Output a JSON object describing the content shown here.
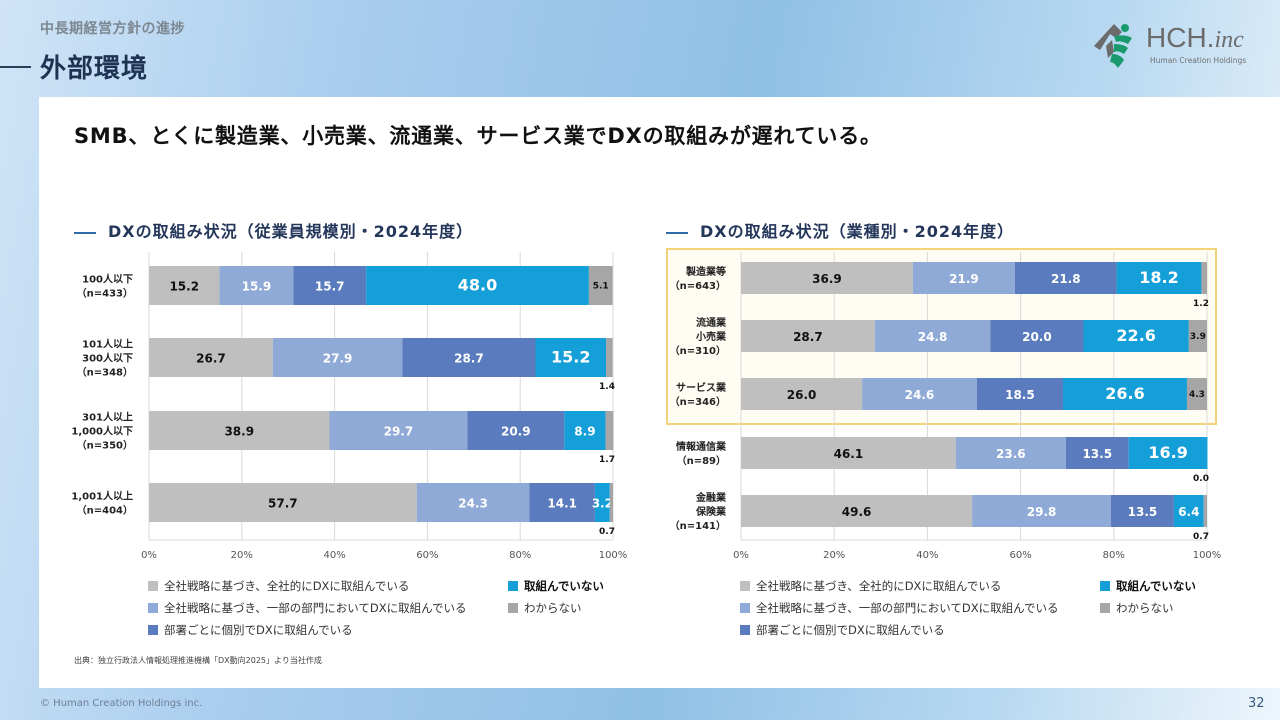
{
  "header": {
    "subtitle": "中長期経営方針の進捗",
    "title": "外部環境",
    "logo": {
      "main": "HCH.",
      "italic": "inc",
      "sub": "Human Creation Holdings"
    }
  },
  "headline": "SMB、とくに製造業、小売業、流通業、サービス業でDXの取組みが遅れている。",
  "legend": [
    {
      "label": "全社戦略に基づき、全社的にDXに取組んでいる",
      "color": "#bfbfbf",
      "bold": false
    },
    {
      "label": "全社戦略に基づき、一部の部門においてDXに取組んでいる",
      "color": "#8faad6",
      "bold": false
    },
    {
      "label": "部署ごとに個別でDXに取組んでいる",
      "color": "#5a7bbd",
      "bold": false
    },
    {
      "label": "取組んでいない",
      "color": "#159fd8",
      "bold": true
    },
    {
      "label": "わからない",
      "color": "#a6a6a6",
      "bold": false
    }
  ],
  "chart_data": [
    {
      "type": "bar",
      "orientation": "horizontal-stacked-100",
      "title": "DXの取組み状況（従業員規模別・2024年度）",
      "categories": [
        [
          "100人以下",
          "（n=433）"
        ],
        [
          "101人以上",
          "300人以下",
          "（n=348）"
        ],
        [
          "301人以上",
          "1,000人以下",
          "（n=350）"
        ],
        [
          "1,001人以上",
          "（n=404）"
        ]
      ],
      "series": [
        {
          "name": "全社戦略に基づき、全社的にDXに取組んでいる",
          "color": "#bfbfbf",
          "values": [
            15.2,
            26.7,
            38.9,
            57.7
          ]
        },
        {
          "name": "全社戦略に基づき、一部の部門においてDXに取組んでいる",
          "color": "#8faad6",
          "values": [
            15.9,
            27.9,
            29.7,
            24.3
          ]
        },
        {
          "name": "部署ごとに個別でDXに取組んでいる",
          "color": "#5a7bbd",
          "values": [
            15.7,
            28.7,
            20.9,
            14.1
          ]
        },
        {
          "name": "取組んでいない",
          "color": "#159fd8",
          "values": [
            48.0,
            15.2,
            8.9,
            3.2
          ]
        },
        {
          "name": "わからない",
          "color": "#a6a6a6",
          "values": [
            5.1,
            1.4,
            1.7,
            0.7
          ]
        }
      ],
      "xlim": [
        0,
        100
      ],
      "xticks": [
        "0%",
        "20%",
        "40%",
        "60%",
        "80%",
        "100%"
      ],
      "grid": true,
      "legend_position": "bottom"
    },
    {
      "type": "bar",
      "orientation": "horizontal-stacked-100",
      "title": "DXの取組み状況（業種別・2024年度）",
      "categories": [
        [
          "製造業等",
          "（n=643）"
        ],
        [
          "流通業",
          "小売業",
          "（n=310）"
        ],
        [
          "サービス業",
          "（n=346）"
        ],
        [
          "情報通信業",
          "（n=89）"
        ],
        [
          "金融業",
          "保険業",
          "（n=141）"
        ]
      ],
      "highlighted_categories": [
        0,
        1,
        2
      ],
      "series": [
        {
          "name": "全社戦略に基づき、全社的にDXに取組んでいる",
          "color": "#bfbfbf",
          "values": [
            36.9,
            28.7,
            26.0,
            46.1,
            49.6
          ]
        },
        {
          "name": "全社戦略に基づき、一部の部門においてDXに取組んでいる",
          "color": "#8faad6",
          "values": [
            21.9,
            24.8,
            24.6,
            23.6,
            29.8
          ]
        },
        {
          "name": "部署ごとに個別でDXに取組んでいる",
          "color": "#5a7bbd",
          "values": [
            21.8,
            20.0,
            18.5,
            13.5,
            13.5
          ]
        },
        {
          "name": "取組んでいない",
          "color": "#159fd8",
          "values": [
            18.2,
            22.6,
            26.6,
            16.9,
            6.4
          ]
        },
        {
          "name": "わからない",
          "color": "#a6a6a6",
          "values": [
            1.2,
            3.9,
            4.3,
            0.0,
            0.7
          ]
        }
      ],
      "xlim": [
        0,
        100
      ],
      "xticks": [
        "0%",
        "20%",
        "40%",
        "60%",
        "80%",
        "100%"
      ],
      "grid": true,
      "legend_position": "bottom"
    }
  ],
  "source": "出典：独立行政法人情報処理推進機構「DX動向2025」より当社作成",
  "footer": {
    "copyright": "© Human Creation Holdings inc.",
    "page": "32"
  }
}
